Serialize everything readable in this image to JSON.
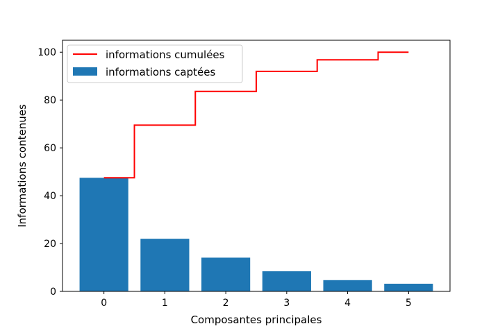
{
  "chart_data": {
    "type": "bar",
    "xlabel": "Composantes principales",
    "ylabel": "Informations contenues",
    "categories": [
      "0",
      "1",
      "2",
      "3",
      "4",
      "5"
    ],
    "x": [
      0,
      1,
      2,
      3,
      4,
      5
    ],
    "ylim": [
      0,
      105
    ],
    "xlim": [
      -0.68,
      5.68
    ],
    "yticks": [
      0,
      20,
      40,
      60,
      80,
      100
    ],
    "grid": false,
    "legend_position": "upper-left",
    "series": [
      {
        "name": "informations captées",
        "type": "bar",
        "color": "#1f77b4",
        "values": [
          47.5,
          22.0,
          14.1,
          8.4,
          4.7,
          3.2
        ]
      },
      {
        "name": "informations cumulées",
        "type": "step",
        "color": "#ff0000",
        "values": [
          47.5,
          69.5,
          83.6,
          92.0,
          96.8,
          100.0
        ]
      }
    ]
  }
}
